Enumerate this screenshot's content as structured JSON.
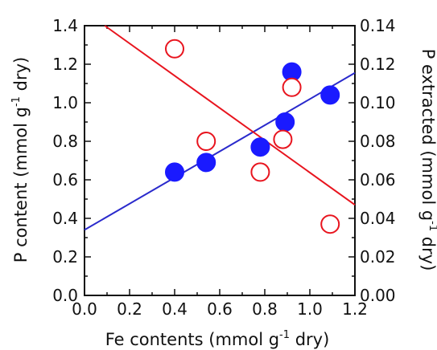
{
  "chart_data": {
    "type": "scatter",
    "x_axis": {
      "label": "Fe contents (mmol g",
      "label_sup": "-1",
      "label_tail": " dry)",
      "range": [
        0.0,
        1.2
      ],
      "ticks": [
        "0.0",
        "0.2",
        "0.4",
        "0.6",
        "0.8",
        "1.0",
        "1.2"
      ]
    },
    "y_axis_left": {
      "label": "P content (mmol g",
      "label_sup": "-1",
      "label_tail": " dry)",
      "range": [
        0.0,
        1.4
      ],
      "ticks": [
        "0.0",
        "0.2",
        "0.4",
        "0.6",
        "0.8",
        "1.0",
        "1.2",
        "1.4"
      ]
    },
    "y_axis_right": {
      "label": "P extracted (mmol g",
      "label_sup": "-1",
      "label_tail": " dry)",
      "range": [
        0.0,
        0.14
      ],
      "ticks": [
        "0.00",
        "0.02",
        "0.04",
        "0.06",
        "0.08",
        "0.10",
        "0.12",
        "0.14"
      ]
    },
    "grid": false,
    "legend": "none",
    "series": [
      {
        "axis": "left",
        "marker": "filled-circle",
        "color": "#1a1aff",
        "x": [
          0.4,
          0.54,
          0.78,
          0.89,
          0.92,
          1.09
        ],
        "y": [
          0.64,
          0.69,
          0.77,
          0.9,
          1.16,
          1.04
        ],
        "fit_line": {
          "color": "#2a2acc",
          "x": [
            0.0,
            1.2
          ],
          "y": [
            0.34,
            1.155
          ]
        }
      },
      {
        "axis": "right",
        "marker": "open-circle",
        "color": "#e8141e",
        "x": [
          0.4,
          0.54,
          0.78,
          0.88,
          0.92,
          1.09
        ],
        "y": [
          0.128,
          0.08,
          0.064,
          0.081,
          0.108,
          0.037
        ],
        "fit_line": {
          "color": "#e8141e",
          "x": [
            0.09,
            1.2
          ],
          "y": [
            0.14,
            0.047
          ]
        }
      }
    ]
  }
}
